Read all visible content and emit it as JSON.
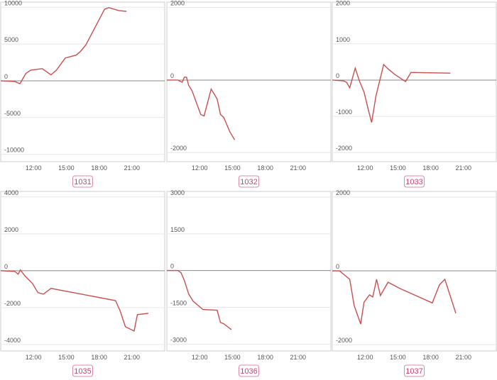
{
  "chart_data": [
    {
      "type": "line",
      "label": "1031",
      "color": "#c94f4f",
      "x": [
        9,
        10.3,
        10.76,
        11.3,
        11.75,
        12.8,
        13.6,
        14.1,
        14.9,
        15.9,
        16.3,
        16.8,
        18.5,
        18.9,
        19.8,
        20.5
      ],
      "values": [
        0,
        -100,
        -400,
        1000,
        1450,
        1650,
        800,
        1450,
        3100,
        3500,
        4000,
        4900,
        9750,
        9950,
        9550,
        9450
      ],
      "xlim": [
        9,
        24
      ],
      "ylim": [
        -11000,
        10700
      ],
      "xticks": [
        {
          "value": 12,
          "label": "12:00"
        },
        {
          "value": 15,
          "label": "15:00"
        },
        {
          "value": 18,
          "label": "18:00"
        },
        {
          "value": 21,
          "label": "21:00"
        }
      ],
      "yticks": [
        10000,
        5000,
        0,
        -5000,
        -10000
      ]
    },
    {
      "type": "line",
      "label": "1032",
      "color": "#c94f4f",
      "x": [
        9,
        10,
        10.4,
        10.6,
        10.8,
        11,
        11.3,
        12.1,
        12.4,
        13.05,
        13.6,
        13.9,
        14.2,
        14.75,
        15.2
      ],
      "values": [
        0,
        0,
        -60,
        80,
        80,
        -150,
        -290,
        -950,
        -990,
        -250,
        -520,
        -950,
        -1030,
        -1420,
        -1650
      ],
      "xlim": [
        9,
        24
      ],
      "ylim": [
        -2250,
        2150
      ],
      "xticks": [
        {
          "value": 12,
          "label": "12:00"
        },
        {
          "value": 15,
          "label": "15:00"
        },
        {
          "value": 18,
          "label": "18:00"
        },
        {
          "value": 21,
          "label": "21:00"
        }
      ],
      "yticks": [
        2000,
        0,
        -2000
      ]
    },
    {
      "type": "line",
      "label": "1033",
      "color": "#c94f4f",
      "x": [
        9,
        10,
        10.3,
        10.6,
        11.1,
        11.5,
        11.9,
        12.3,
        12.6,
        13,
        13.7,
        14.1,
        14.7,
        15.2,
        15.7,
        16.2,
        19.8
      ],
      "values": [
        0,
        -20,
        -60,
        -210,
        330,
        -40,
        -330,
        -820,
        -1170,
        -430,
        430,
        310,
        160,
        60,
        -40,
        210,
        190
      ],
      "xlim": [
        9,
        24
      ],
      "ylim": [
        -2250,
        2150
      ],
      "xticks": [
        {
          "value": 12,
          "label": "12:00"
        },
        {
          "value": 15,
          "label": "15:00"
        },
        {
          "value": 18,
          "label": "18:00"
        },
        {
          "value": 21,
          "label": "21:00"
        }
      ],
      "yticks": [
        2000,
        1000,
        0,
        -1000,
        -2000
      ]
    },
    {
      "type": "line",
      "label": "1035",
      "color": "#c94f4f",
      "x": [
        9,
        10.3,
        10.6,
        10.8,
        11.2,
        11.9,
        12.4,
        12.9,
        13.6,
        19.5,
        19.9,
        20.4,
        21.2,
        21.5,
        22.5
      ],
      "values": [
        0,
        -40,
        -190,
        40,
        -270,
        -690,
        -1190,
        -1270,
        -960,
        -1620,
        -2150,
        -3040,
        -3270,
        -2380,
        -2310
      ],
      "xlim": [
        9,
        24
      ],
      "ylim": [
        -4350,
        4300
      ],
      "xticks": [
        {
          "value": 12,
          "label": "12:00"
        },
        {
          "value": 15,
          "label": "15:00"
        },
        {
          "value": 18,
          "label": "18:00"
        },
        {
          "value": 21,
          "label": "21:00"
        }
      ],
      "yticks": [
        4000,
        2000,
        0,
        -2000,
        -4000
      ]
    },
    {
      "type": "line",
      "label": "1036",
      "color": "#c94f4f",
      "x": [
        9,
        10,
        10.3,
        10.6,
        11,
        11.4,
        12.3,
        13.6,
        13.9,
        14.2,
        14.9
      ],
      "values": [
        0,
        0,
        -90,
        -400,
        -960,
        -1250,
        -1590,
        -1620,
        -2120,
        -2170,
        -2410
      ],
      "xlim": [
        9,
        24
      ],
      "ylim": [
        -3280,
        3230
      ],
      "xticks": [
        {
          "value": 12,
          "label": "12:00"
        },
        {
          "value": 15,
          "label": "15:00"
        },
        {
          "value": 18,
          "label": "18:00"
        },
        {
          "value": 21,
          "label": "21:00"
        }
      ],
      "yticks": [
        3000,
        1500,
        0,
        -1500,
        -3000
      ]
    },
    {
      "type": "line",
      "label": "1037",
      "color": "#c94f4f",
      "x": [
        9,
        9.65,
        10.6,
        11,
        11.6,
        11.9,
        12.4,
        12.7,
        13.05,
        13.4,
        14.1,
        15.2,
        18.15,
        18.8,
        19.3,
        20.3
      ],
      "values": [
        0,
        0,
        -230,
        -940,
        -1440,
        -850,
        -650,
        -710,
        -230,
        -670,
        -310,
        -480,
        -870,
        -380,
        -230,
        -1150
      ],
      "xlim": [
        9,
        24
      ],
      "ylim": [
        -2170,
        2150
      ],
      "xticks": [
        {
          "value": 12,
          "label": "12:00"
        },
        {
          "value": 15,
          "label": "15:00"
        },
        {
          "value": 18,
          "label": "18:00"
        },
        {
          "value": 21,
          "label": "21:00"
        }
      ],
      "yticks": [
        2000,
        0,
        -2000
      ]
    }
  ]
}
